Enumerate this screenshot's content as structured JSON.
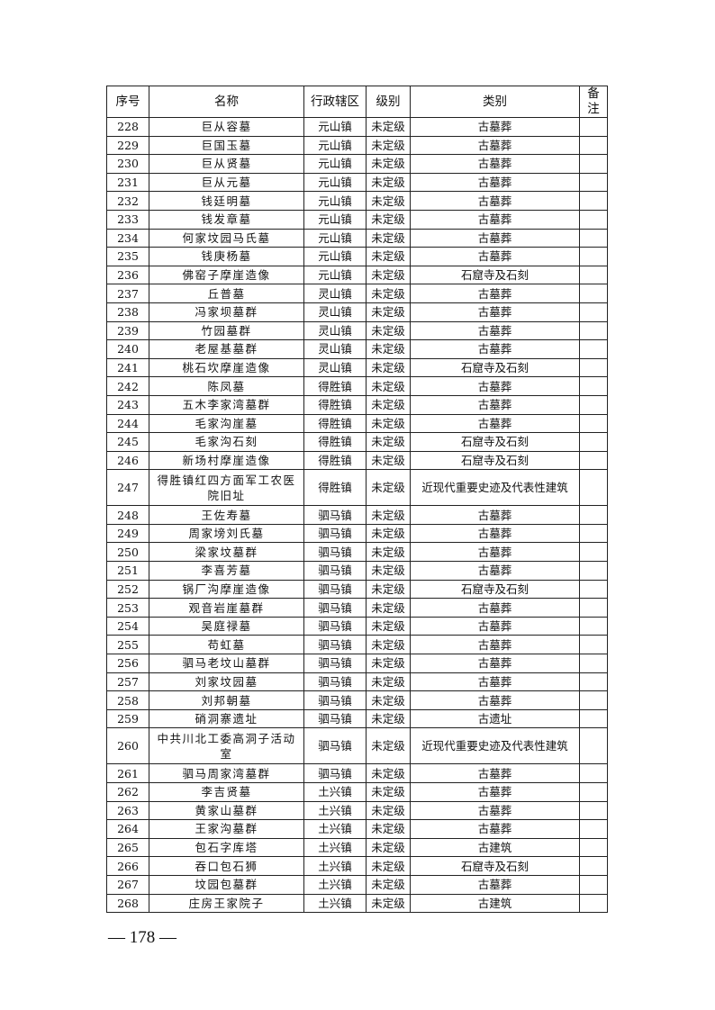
{
  "headers": {
    "no": "序号",
    "name": "名称",
    "district": "行政辖区",
    "level": "级别",
    "category": "类别",
    "remark": "备注"
  },
  "rows": [
    {
      "no": "228",
      "name": "巨从容墓",
      "district": "元山镇",
      "level": "未定级",
      "category": "古墓葬",
      "remark": ""
    },
    {
      "no": "229",
      "name": "巨国玉墓",
      "district": "元山镇",
      "level": "未定级",
      "category": "古墓葬",
      "remark": ""
    },
    {
      "no": "230",
      "name": "巨从贤墓",
      "district": "元山镇",
      "level": "未定级",
      "category": "古墓葬",
      "remark": ""
    },
    {
      "no": "231",
      "name": "巨从元墓",
      "district": "元山镇",
      "level": "未定级",
      "category": "古墓葬",
      "remark": ""
    },
    {
      "no": "232",
      "name": "钱廷明墓",
      "district": "元山镇",
      "level": "未定级",
      "category": "古墓葬",
      "remark": ""
    },
    {
      "no": "233",
      "name": "钱发章墓",
      "district": "元山镇",
      "level": "未定级",
      "category": "古墓葬",
      "remark": ""
    },
    {
      "no": "234",
      "name": "何家坟园马氏墓",
      "district": "元山镇",
      "level": "未定级",
      "category": "古墓葬",
      "remark": ""
    },
    {
      "no": "235",
      "name": "钱庚杨墓",
      "district": "元山镇",
      "level": "未定级",
      "category": "古墓葬",
      "remark": ""
    },
    {
      "no": "236",
      "name": "佛窑子摩崖造像",
      "district": "元山镇",
      "level": "未定级",
      "category": "石窟寺及石刻",
      "remark": ""
    },
    {
      "no": "237",
      "name": "丘普墓",
      "district": "灵山镇",
      "level": "未定级",
      "category": "古墓葬",
      "remark": ""
    },
    {
      "no": "238",
      "name": "冯家坝墓群",
      "district": "灵山镇",
      "level": "未定级",
      "category": "古墓葬",
      "remark": ""
    },
    {
      "no": "239",
      "name": "竹园墓群",
      "district": "灵山镇",
      "level": "未定级",
      "category": "古墓葬",
      "remark": ""
    },
    {
      "no": "240",
      "name": "老屋基墓群",
      "district": "灵山镇",
      "level": "未定级",
      "category": "古墓葬",
      "remark": ""
    },
    {
      "no": "241",
      "name": "桃石坎摩崖造像",
      "district": "灵山镇",
      "level": "未定级",
      "category": "石窟寺及石刻",
      "remark": ""
    },
    {
      "no": "242",
      "name": "陈凤墓",
      "district": "得胜镇",
      "level": "未定级",
      "category": "古墓葬",
      "remark": ""
    },
    {
      "no": "243",
      "name": "五木李家湾墓群",
      "district": "得胜镇",
      "level": "未定级",
      "category": "古墓葬",
      "remark": ""
    },
    {
      "no": "244",
      "name": "毛家沟崖墓",
      "district": "得胜镇",
      "level": "未定级",
      "category": "古墓葬",
      "remark": ""
    },
    {
      "no": "245",
      "name": "毛家沟石刻",
      "district": "得胜镇",
      "level": "未定级",
      "category": "石窟寺及石刻",
      "remark": ""
    },
    {
      "no": "246",
      "name": "新场村摩崖造像",
      "district": "得胜镇",
      "level": "未定级",
      "category": "石窟寺及石刻",
      "remark": ""
    },
    {
      "no": "247",
      "name": "得胜镇红四方面军工农医院旧址",
      "district": "得胜镇",
      "level": "未定级",
      "category": "近现代重要史迹及代表性建筑",
      "remark": ""
    },
    {
      "no": "248",
      "name": "王佐寿墓",
      "district": "驷马镇",
      "level": "未定级",
      "category": "古墓葬",
      "remark": ""
    },
    {
      "no": "249",
      "name": "周家塝刘氏墓",
      "district": "驷马镇",
      "level": "未定级",
      "category": "古墓葬",
      "remark": ""
    },
    {
      "no": "250",
      "name": "梁家坟墓群",
      "district": "驷马镇",
      "level": "未定级",
      "category": "古墓葬",
      "remark": ""
    },
    {
      "no": "251",
      "name": "李喜芳墓",
      "district": "驷马镇",
      "level": "未定级",
      "category": "古墓葬",
      "remark": ""
    },
    {
      "no": "252",
      "name": "锅厂沟摩崖造像",
      "district": "驷马镇",
      "level": "未定级",
      "category": "石窟寺及石刻",
      "remark": ""
    },
    {
      "no": "253",
      "name": "观音岩崖墓群",
      "district": "驷马镇",
      "level": "未定级",
      "category": "古墓葬",
      "remark": ""
    },
    {
      "no": "254",
      "name": "吴庭禄墓",
      "district": "驷马镇",
      "level": "未定级",
      "category": "古墓葬",
      "remark": ""
    },
    {
      "no": "255",
      "name": "苟虹墓",
      "district": "驷马镇",
      "level": "未定级",
      "category": "古墓葬",
      "remark": ""
    },
    {
      "no": "256",
      "name": "驷马老坟山墓群",
      "district": "驷马镇",
      "level": "未定级",
      "category": "古墓葬",
      "remark": ""
    },
    {
      "no": "257",
      "name": "刘家坟园墓",
      "district": "驷马镇",
      "level": "未定级",
      "category": "古墓葬",
      "remark": ""
    },
    {
      "no": "258",
      "name": "刘邦朝墓",
      "district": "驷马镇",
      "level": "未定级",
      "category": "古墓葬",
      "remark": ""
    },
    {
      "no": "259",
      "name": "硝洞寨遗址",
      "district": "驷马镇",
      "level": "未定级",
      "category": "古遗址",
      "remark": ""
    },
    {
      "no": "260",
      "name": "中共川北工委高洞子活动室",
      "district": "驷马镇",
      "level": "未定级",
      "category": "近现代重要史迹及代表性建筑",
      "remark": ""
    },
    {
      "no": "261",
      "name": "驷马周家湾墓群",
      "district": "驷马镇",
      "level": "未定级",
      "category": "古墓葬",
      "remark": ""
    },
    {
      "no": "262",
      "name": "李吉贤墓",
      "district": "土兴镇",
      "level": "未定级",
      "category": "古墓葬",
      "remark": ""
    },
    {
      "no": "263",
      "name": "黄家山墓群",
      "district": "土兴镇",
      "level": "未定级",
      "category": "古墓葬",
      "remark": ""
    },
    {
      "no": "264",
      "name": "王家沟墓群",
      "district": "土兴镇",
      "level": "未定级",
      "category": "古墓葬",
      "remark": ""
    },
    {
      "no": "265",
      "name": "包石字库塔",
      "district": "土兴镇",
      "level": "未定级",
      "category": "古建筑",
      "remark": ""
    },
    {
      "no": "266",
      "name": "吞口包石狮",
      "district": "土兴镇",
      "level": "未定级",
      "category": "石窟寺及石刻",
      "remark": ""
    },
    {
      "no": "267",
      "name": "坟园包墓群",
      "district": "土兴镇",
      "level": "未定级",
      "category": "古墓葬",
      "remark": ""
    },
    {
      "no": "268",
      "name": "庄房王家院子",
      "district": "土兴镇",
      "level": "未定级",
      "category": "古建筑",
      "remark": ""
    }
  ],
  "footer": {
    "page_number": "— 178 —"
  }
}
